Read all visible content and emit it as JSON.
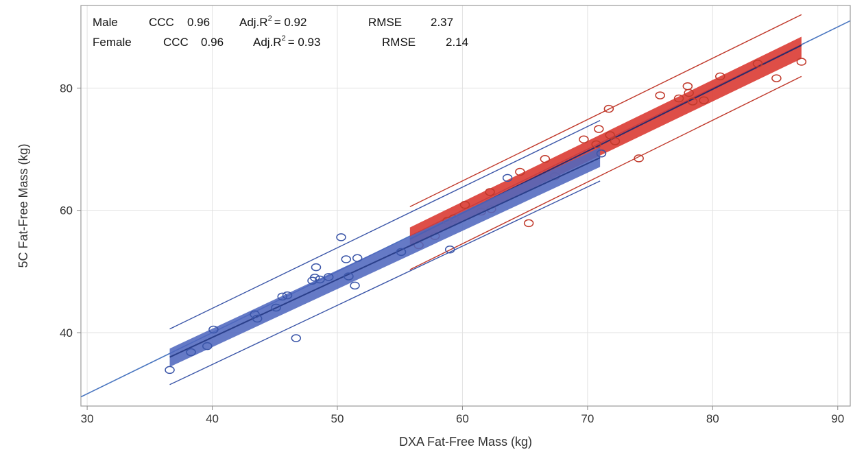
{
  "chart_data": {
    "type": "scatter",
    "xlabel": "DXA Fat-Free Mass (kg)",
    "ylabel": "5C Fat-Free Mass (kg)",
    "xlim": [
      29.5,
      91
    ],
    "ylim": [
      28,
      93.5
    ],
    "xticks": [
      30,
      40,
      50,
      60,
      70,
      80,
      90
    ],
    "yticks": [
      40,
      60,
      80
    ],
    "grid": true,
    "colors": {
      "male": "#C0392B",
      "female": "#3A55A8",
      "male_band": "#D9362E",
      "female_band": "#5068BE",
      "identity_line": "#4A76C0",
      "grid": "#E2E2E2",
      "frame": "#9A9A9A"
    },
    "identity_line": {
      "x": [
        29.5,
        91
      ],
      "y": [
        29.5,
        91
      ]
    },
    "annotations": [
      {
        "group": "Male",
        "ccc_label": "CCC",
        "ccc": "0.96",
        "adj_r2_label": "Adj.R",
        "r2_sup": "2",
        "adj_r2_eq": "= 0.92",
        "rmse_label": "RMSE",
        "rmse": "2.37"
      },
      {
        "group": "Female",
        "ccc_label": "CCC",
        "ccc": "0.96",
        "adj_r2_label": "Adj.R",
        "r2_sup": "2",
        "adj_r2_eq": "= 0.93",
        "rmse_label": "RMSE",
        "rmse": "2.14"
      }
    ],
    "series": [
      {
        "group": "male",
        "points": [
          [
            56.5,
            54.3
          ],
          [
            57.8,
            55.8
          ],
          [
            58.8,
            58.3
          ],
          [
            59.3,
            58.7
          ],
          [
            60.2,
            60.9
          ],
          [
            61.5,
            59.8
          ],
          [
            62.2,
            63.0
          ],
          [
            62.3,
            60.2
          ],
          [
            64.6,
            66.3
          ],
          [
            65.3,
            57.9
          ],
          [
            66.6,
            68.4
          ],
          [
            67.4,
            65.6
          ],
          [
            69.7,
            71.6
          ],
          [
            70.7,
            70.8
          ],
          [
            70.9,
            73.3
          ],
          [
            71.1,
            69.3
          ],
          [
            71.7,
            76.6
          ],
          [
            71.8,
            72.3
          ],
          [
            72.2,
            71.3
          ],
          [
            74.1,
            68.5
          ],
          [
            75.8,
            78.8
          ],
          [
            77.3,
            78.3
          ],
          [
            78.0,
            80.3
          ],
          [
            78.1,
            79.2
          ],
          [
            78.4,
            77.8
          ],
          [
            79.3,
            78.0
          ],
          [
            80.6,
            81.9
          ],
          [
            83.6,
            84.0
          ],
          [
            85.1,
            81.6
          ],
          [
            87.1,
            84.3
          ]
        ],
        "fit": {
          "x": [
            55.8,
            87.1
          ],
          "y": [
            55.3,
            87.0
          ]
        },
        "band_lower": [
          54.0,
          84.8
        ],
        "band_upper": [
          57.2,
          88.4
        ],
        "pred_lower": [
          50.3,
          81.9
        ],
        "pred_upper": [
          60.6,
          92.0
        ]
      },
      {
        "group": "female",
        "points": [
          [
            36.6,
            33.9
          ],
          [
            38.3,
            36.8
          ],
          [
            39.6,
            37.8
          ],
          [
            40.1,
            40.5
          ],
          [
            43.4,
            43.0
          ],
          [
            43.6,
            42.3
          ],
          [
            45.1,
            44.1
          ],
          [
            45.6,
            45.9
          ],
          [
            46.0,
            46.1
          ],
          [
            46.7,
            39.1
          ],
          [
            48.0,
            48.5
          ],
          [
            48.2,
            49.0
          ],
          [
            48.3,
            50.7
          ],
          [
            48.6,
            48.7
          ],
          [
            49.3,
            49.1
          ],
          [
            50.3,
            55.6
          ],
          [
            50.7,
            52.0
          ],
          [
            50.9,
            49.2
          ],
          [
            51.4,
            47.7
          ],
          [
            51.6,
            52.2
          ],
          [
            55.1,
            53.2
          ],
          [
            59.0,
            53.6
          ],
          [
            63.6,
            65.3
          ],
          [
            71.1,
            69.3
          ]
        ],
        "fit": {
          "x": [
            36.6,
            71.0
          ],
          "y": [
            36.0,
            68.6
          ]
        },
        "band_lower": [
          34.4,
          67.1
        ],
        "band_upper": [
          37.4,
          70.3
        ],
        "pred_lower": [
          31.5,
          64.8
        ],
        "pred_upper": [
          40.6,
          74.7
        ]
      }
    ]
  }
}
